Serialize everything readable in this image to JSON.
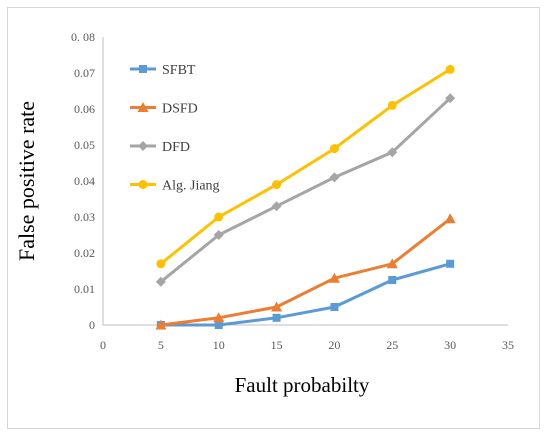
{
  "chart_data": {
    "type": "line",
    "title": "",
    "xlabel": "Fault probabilty",
    "ylabel": "False positive rate",
    "xlim": [
      0,
      35
    ],
    "ylim": [
      0,
      0.08
    ],
    "x_ticks": [
      "0",
      "5",
      "10",
      "15",
      "20",
      "25",
      "30",
      "35"
    ],
    "y_ticks": [
      "0",
      "0.01",
      "0.02",
      "0.03",
      "0.04",
      "0.05",
      "0.06",
      "0.07",
      "0. 08"
    ],
    "grid": false,
    "legend_position": "top-left inside plot",
    "x": [
      5,
      10,
      15,
      20,
      25,
      30
    ],
    "series": [
      {
        "name": "SFBT",
        "color": "#5b9bd5",
        "marker": "square",
        "values": [
          0,
          0,
          0.002,
          0.005,
          0.0125,
          0.017
        ]
      },
      {
        "name": "DSFD",
        "color": "#ed7d31",
        "marker": "triangle",
        "values": [
          0,
          0.002,
          0.005,
          0.013,
          0.017,
          0.0295
        ]
      },
      {
        "name": "DFD",
        "color": "#a5a5a5",
        "marker": "diamond",
        "values": [
          0.012,
          0.025,
          0.033,
          0.041,
          0.048,
          0.063
        ]
      },
      {
        "name": "Alg. Jiang",
        "color": "#ffc000",
        "marker": "circle",
        "values": [
          0.017,
          0.03,
          0.039,
          0.049,
          0.061,
          0.071
        ]
      }
    ]
  }
}
